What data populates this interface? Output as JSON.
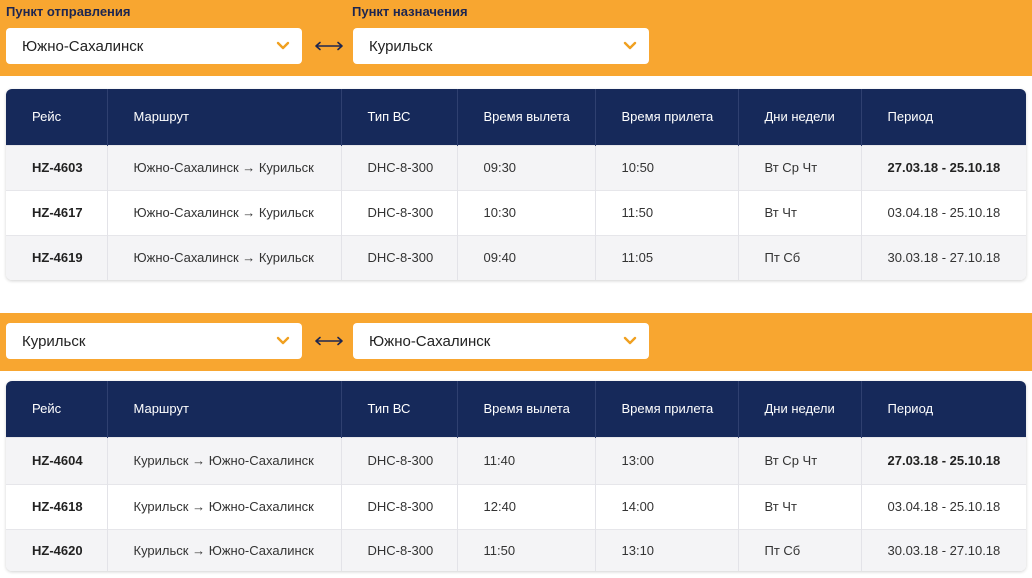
{
  "search_top": {
    "from_label": "Пункт отправления",
    "to_label": "Пункт назначения",
    "from_value": "Южно-Сахалинск",
    "to_value": "Курильск"
  },
  "search_bottom": {
    "from_value": "Курильск",
    "to_value": "Южно-Сахалинск"
  },
  "table_headers": [
    "Рейс",
    "Маршрут",
    "Тип ВС",
    "Время вылета",
    "Время прилета",
    "Дни недели",
    "Период"
  ],
  "table1": [
    {
      "flight": "HZ-4603",
      "route": "Южно-Сахалинск → Курильск",
      "aircraft": "DHC-8-300",
      "dep": "09:30",
      "arr": "10:50",
      "days": "Вт Ср Чт",
      "period": "27.03.18 - 25.10.18",
      "period_bold": true
    },
    {
      "flight": "HZ-4617",
      "route": "Южно-Сахалинск → Курильск",
      "aircraft": "DHC-8-300",
      "dep": "10:30",
      "arr": "11:50",
      "days": "Вт Чт",
      "period": "03.04.18 - 25.10.18",
      "period_bold": false
    },
    {
      "flight": "HZ-4619",
      "route": "Южно-Сахалинск → Курильск",
      "aircraft": "DHC-8-300",
      "dep": "09:40",
      "arr": "11:05",
      "days": "Пт Сб",
      "period": "30.03.18 - 27.10.18",
      "period_bold": false
    }
  ],
  "table2": [
    {
      "flight": "HZ-4604",
      "route": "Курильск → Южно-Сахалинск",
      "aircraft": "DHC-8-300",
      "dep": "11:40",
      "arr": "13:00",
      "days": "Вт Ср Чт",
      "period": "27.03.18 - 25.10.18",
      "period_bold": true
    },
    {
      "flight": "HZ-4618",
      "route": "Курильск → Южно-Сахалинск",
      "aircraft": "DHC-8-300",
      "dep": "12:40",
      "arr": "14:00",
      "days": "Вт Чт",
      "period": "03.04.18 - 25.10.18",
      "period_bold": false
    },
    {
      "flight": "HZ-4620",
      "route": "Курильск → Южно-Сахалинск",
      "aircraft": "DHC-8-300",
      "dep": "11:50",
      "arr": "13:10",
      "days": "Пт Сб",
      "period": "30.03.18 - 27.10.18",
      "period_bold": false
    }
  ],
  "colors": {
    "accent": "#f8a630",
    "header_bg": "#16295a",
    "chevron": "#f0a020"
  },
  "icons": {
    "dropdown": "chevron-down-icon",
    "swap": "swap-arrows-icon"
  }
}
